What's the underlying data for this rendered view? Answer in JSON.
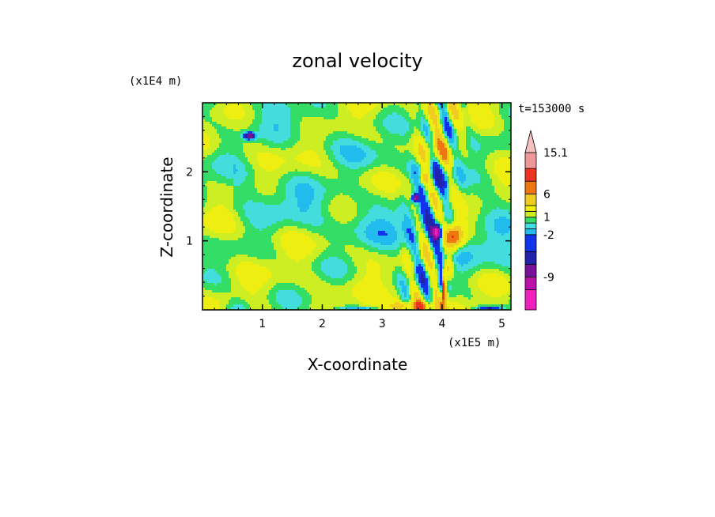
{
  "chart_data": {
    "type": "heatmap",
    "title": "zonal velocity",
    "xlabel": "X-coordinate",
    "ylabel": "Z-coordinate",
    "x_unit": "(x1E5 m)",
    "y_unit": "(x1E4 m)",
    "time_label": "t=153000 s",
    "xlim": [
      0,
      5.15
    ],
    "ylim": [
      0,
      3.0
    ],
    "xticks": [
      1,
      2,
      3,
      4,
      5
    ],
    "yticks": [
      1,
      2
    ],
    "colorbar": {
      "levels": [
        -15,
        -12,
        -9,
        -6,
        -4,
        -2,
        -1,
        0,
        1,
        2,
        4,
        6,
        8,
        10,
        15.1
      ],
      "colors": [
        "#ee22bb",
        "#bb11aa",
        "#771199",
        "#2222aa",
        "#1133ee",
        "#22bbee",
        "#44dddd",
        "#33dd66",
        "#ccee22",
        "#eeee11",
        "#eecc22",
        "#ee7711",
        "#ee3322",
        "#ee9999",
        "#f5c0c0"
      ],
      "tick_labels": [
        "15.1",
        "6",
        "1",
        "-2",
        "-9"
      ],
      "tick_values": [
        15.1,
        6,
        1,
        -2,
        -9
      ]
    },
    "grid": false
  }
}
